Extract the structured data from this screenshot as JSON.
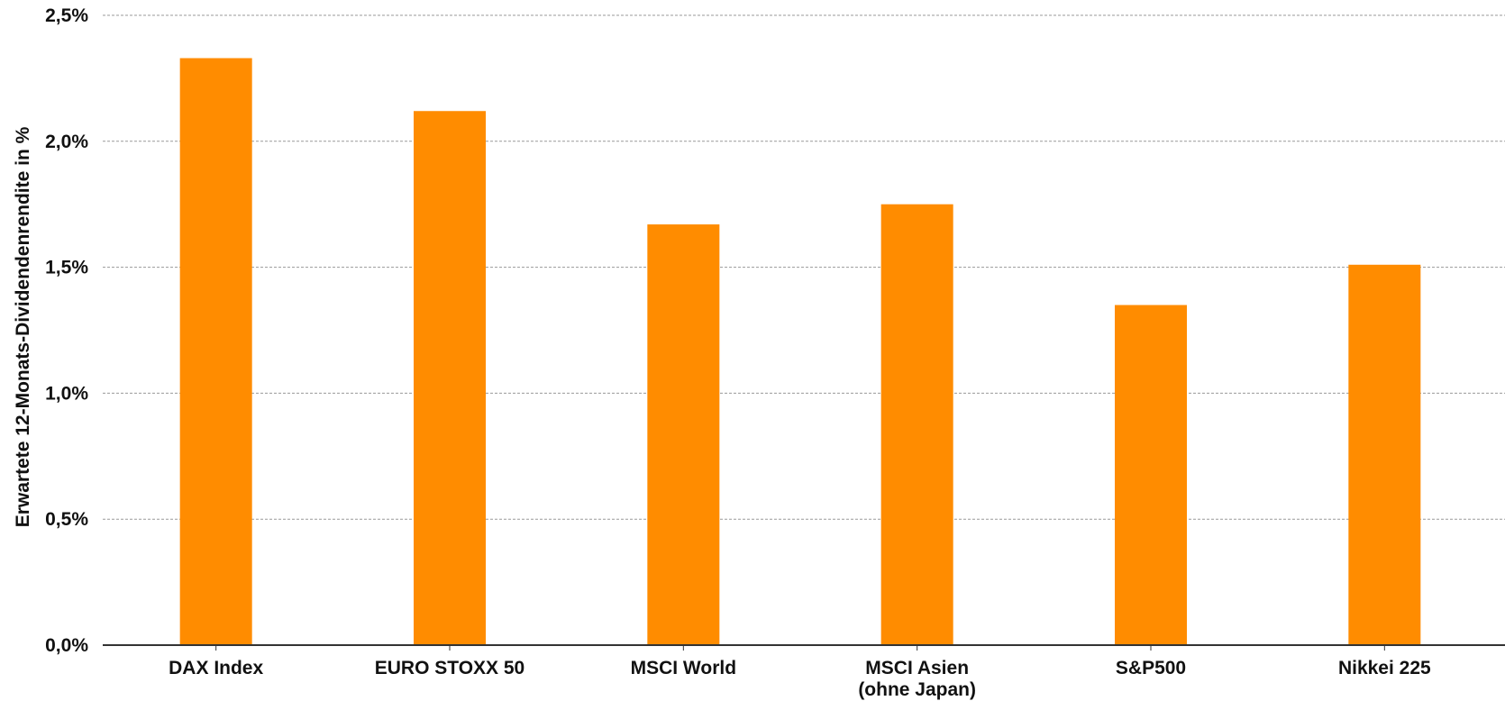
{
  "chart_data": {
    "type": "bar",
    "categories": [
      [
        "DAX Index"
      ],
      [
        "EURO  STOXX 50"
      ],
      [
        "MSCI World"
      ],
      [
        "MSCI Asien",
        "(ohne Japan)"
      ],
      [
        "S&P500"
      ],
      [
        "Nikkei 225"
      ]
    ],
    "values": [
      2.33,
      2.12,
      1.67,
      1.75,
      1.35,
      1.51
    ],
    "title": "",
    "xlabel": "",
    "ylabel": "Erwartete 12-Monats-Dividendenrendite  in %",
    "ylim": [
      0,
      2.5
    ],
    "yticks": [
      0,
      0.5,
      1.0,
      1.5,
      2.0,
      2.5
    ],
    "ytick_labels": [
      "0,0%",
      "0,5%",
      "1,0%",
      "1,5%",
      "2,0%",
      "2,5%"
    ],
    "grid": true,
    "legend": "none",
    "colors": {
      "bar": "#ff8c00",
      "grid": "#9a9a9a",
      "axis": "#333333"
    }
  }
}
